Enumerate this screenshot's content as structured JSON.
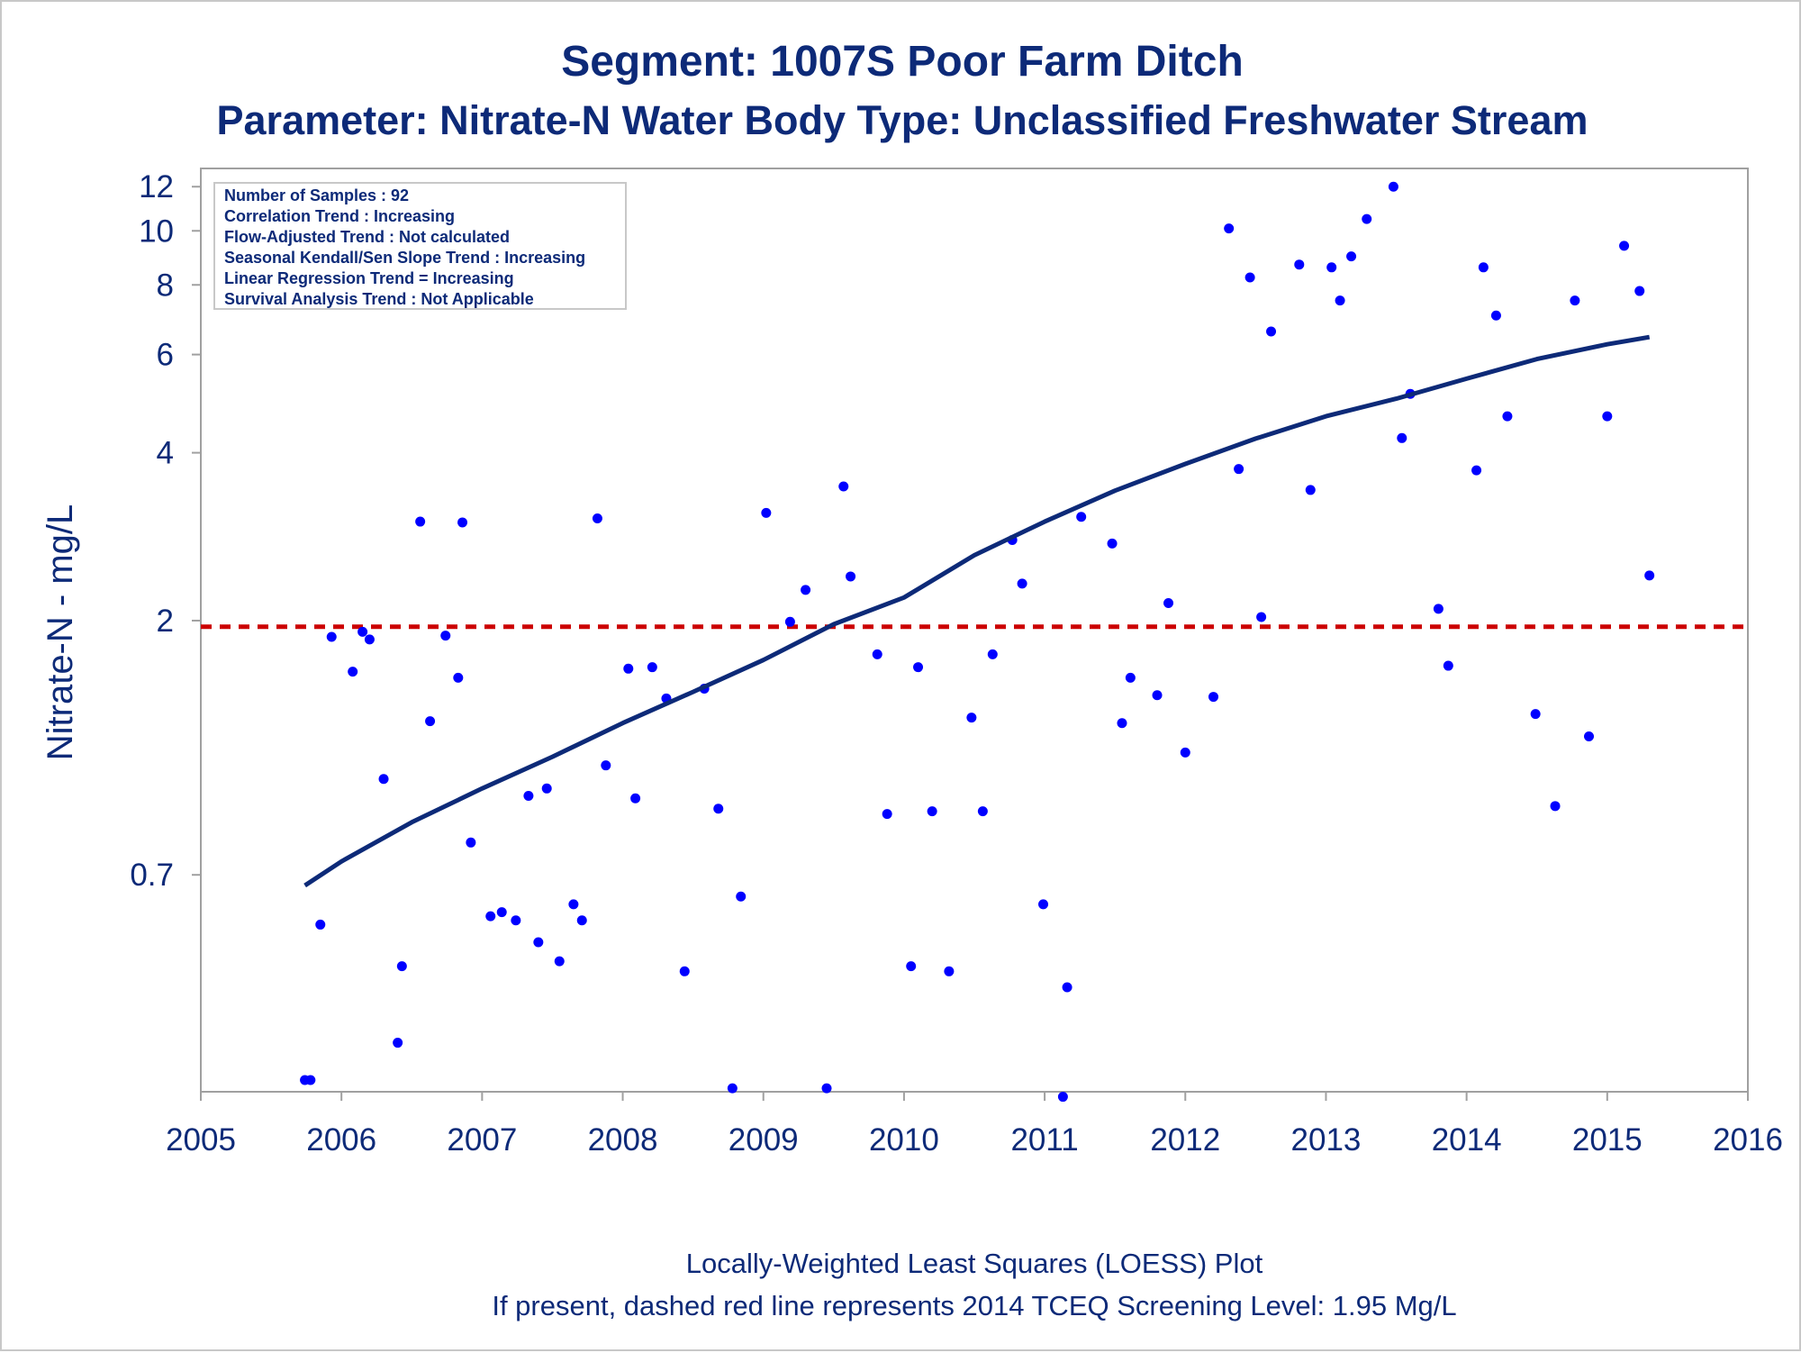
{
  "chart_data": {
    "type": "scatter",
    "title": "Segment: 1007S  Poor Farm Ditch",
    "subtitle": "Parameter: Nitrate-N   Water Body Type: Unclassified Freshwater Stream",
    "xlabel": "",
    "ylabel": "Nitrate-N - mg/L",
    "y_scale": "log",
    "xlim": [
      2005,
      2016
    ],
    "ylim": [
      0.3,
      12.7
    ],
    "x_ticks": [
      2005,
      2006,
      2007,
      2008,
      2009,
      2010,
      2011,
      2012,
      2013,
      2014,
      2015,
      2016
    ],
    "x_tick_labels": [
      "2005",
      "2006",
      "2007",
      "2008",
      "2009",
      "2010",
      "2011",
      "2012",
      "2013",
      "2014",
      "2015",
      "2016"
    ],
    "y_ticks": [
      0.7,
      2,
      4,
      6,
      8,
      10,
      12
    ],
    "y_tick_labels": [
      "0.7",
      "2",
      "4",
      "6",
      "8",
      "10",
      "12"
    ],
    "grid": false,
    "colors": {
      "points": "#0000ff",
      "loess": "#0d2a78",
      "screening": "#cc0000",
      "text": "#0d2a78",
      "axis": "#a0a0a0"
    },
    "points": [
      [
        2005.74,
        0.3
      ],
      [
        2005.78,
        0.3
      ],
      [
        2005.85,
        0.57
      ],
      [
        2005.93,
        1.87
      ],
      [
        2006.08,
        1.62
      ],
      [
        2006.15,
        1.91
      ],
      [
        2006.2,
        1.85
      ],
      [
        2006.3,
        1.04
      ],
      [
        2006.4,
        0.35
      ],
      [
        2006.43,
        0.48
      ],
      [
        2006.56,
        3.01
      ],
      [
        2006.63,
        1.32
      ],
      [
        2006.74,
        1.88
      ],
      [
        2006.83,
        1.58
      ],
      [
        2006.86,
        3.0
      ],
      [
        2006.92,
        0.8
      ],
      [
        2007.06,
        0.59
      ],
      [
        2007.14,
        0.6
      ],
      [
        2007.24,
        0.58
      ],
      [
        2007.33,
        0.97
      ],
      [
        2007.4,
        0.53
      ],
      [
        2007.46,
        1.0
      ],
      [
        2007.55,
        0.49
      ],
      [
        2007.65,
        0.62
      ],
      [
        2007.71,
        0.58
      ],
      [
        2007.82,
        3.05
      ],
      [
        2007.88,
        1.1
      ],
      [
        2008.04,
        1.64
      ],
      [
        2008.09,
        0.96
      ],
      [
        2008.21,
        1.65
      ],
      [
        2008.31,
        1.45
      ],
      [
        2008.44,
        0.47
      ],
      [
        2008.58,
        1.51
      ],
      [
        2008.68,
        0.92
      ],
      [
        2008.78,
        0.29
      ],
      [
        2008.84,
        0.64
      ],
      [
        2009.02,
        3.12
      ],
      [
        2009.19,
        1.99
      ],
      [
        2009.3,
        2.27
      ],
      [
        2009.45,
        0.29
      ],
      [
        2009.57,
        3.48
      ],
      [
        2009.62,
        2.4
      ],
      [
        2009.81,
        1.74
      ],
      [
        2009.88,
        0.9
      ],
      [
        2010.05,
        0.48
      ],
      [
        2010.1,
        1.65
      ],
      [
        2010.2,
        0.91
      ],
      [
        2010.32,
        0.47
      ],
      [
        2010.48,
        1.34
      ],
      [
        2010.56,
        0.91
      ],
      [
        2010.63,
        1.74
      ],
      [
        2010.77,
        2.79
      ],
      [
        2010.84,
        2.33
      ],
      [
        2010.99,
        0.62
      ],
      [
        2011.13,
        0.28
      ],
      [
        2011.16,
        0.44
      ],
      [
        2011.26,
        3.07
      ],
      [
        2011.48,
        2.75
      ],
      [
        2011.55,
        1.31
      ],
      [
        2011.61,
        1.58
      ],
      [
        2011.8,
        1.47
      ],
      [
        2011.88,
        2.15
      ],
      [
        2012.0,
        1.16
      ],
      [
        2012.2,
        1.46
      ],
      [
        2012.31,
        10.1
      ],
      [
        2012.38,
        3.74
      ],
      [
        2012.46,
        8.25
      ],
      [
        2012.54,
        2.03
      ],
      [
        2012.61,
        6.6
      ],
      [
        2012.81,
        8.7
      ],
      [
        2012.89,
        3.43
      ],
      [
        2013.04,
        8.6
      ],
      [
        2013.1,
        7.5
      ],
      [
        2013.18,
        9.0
      ],
      [
        2013.29,
        10.5
      ],
      [
        2013.48,
        12.0
      ],
      [
        2013.54,
        4.25
      ],
      [
        2013.6,
        5.1
      ],
      [
        2013.8,
        2.1
      ],
      [
        2013.87,
        1.66
      ],
      [
        2014.07,
        3.72
      ],
      [
        2014.12,
        8.6
      ],
      [
        2014.21,
        7.05
      ],
      [
        2014.29,
        4.65
      ],
      [
        2014.49,
        1.36
      ],
      [
        2014.63,
        0.93
      ],
      [
        2014.77,
        7.5
      ],
      [
        2014.87,
        1.24
      ],
      [
        2015.0,
        4.65
      ],
      [
        2015.12,
        9.4
      ],
      [
        2015.23,
        7.8
      ],
      [
        2015.3,
        2.41
      ]
    ],
    "loess": [
      [
        2005.74,
        0.67
      ],
      [
        2006.0,
        0.74
      ],
      [
        2006.5,
        0.87
      ],
      [
        2007.0,
        1.0
      ],
      [
        2007.5,
        1.14
      ],
      [
        2008.0,
        1.31
      ],
      [
        2008.5,
        1.49
      ],
      [
        2009.0,
        1.7
      ],
      [
        2009.5,
        1.97
      ],
      [
        2010.0,
        2.2
      ],
      [
        2010.5,
        2.62
      ],
      [
        2011.0,
        3.01
      ],
      [
        2011.5,
        3.42
      ],
      [
        2012.0,
        3.82
      ],
      [
        2012.5,
        4.24
      ],
      [
        2013.0,
        4.65
      ],
      [
        2013.5,
        5.0
      ],
      [
        2014.0,
        5.43
      ],
      [
        2014.5,
        5.89
      ],
      [
        2015.0,
        6.26
      ],
      [
        2015.3,
        6.45
      ]
    ],
    "screening_level": 1.95,
    "annotations": [
      "Number of Samples : 92",
      "Correlation Trend : Increasing",
      "Flow-Adjusted Trend : Not calculated",
      "Seasonal Kendall/Sen Slope Trend : Increasing",
      "Linear Regression Trend = Increasing",
      "Survival Analysis Trend : Not Applicable"
    ],
    "footnotes": [
      "Locally-Weighted Least Squares (LOESS) Plot",
      "If present, dashed red line represents 2014 TCEQ Screening Level: 1.95 Mg/L"
    ]
  }
}
